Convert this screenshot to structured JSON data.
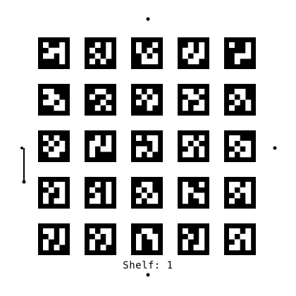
{
  "caption": "Shelf: 1",
  "colors": {
    "background": "#ffffff",
    "ink": "#000000"
  },
  "markers": {
    "rows": 5,
    "cols": 5,
    "bits": 4,
    "patterns": [
      [
        "1001",
        "0111",
        "1101",
        "0001"
      ],
      [
        "0101",
        "1001",
        "0101",
        "1010"
      ],
      [
        "1001",
        "1010",
        "0101",
        "0111"
      ],
      [
        "0101",
        "1101",
        "1011",
        "0110"
      ],
      [
        "1001",
        "0001",
        "0111",
        "0100"
      ],
      [
        "1100",
        "0110",
        "1101",
        "0011"
      ],
      [
        "0110",
        "1001",
        "0010",
        "0101"
      ],
      [
        "1010",
        "0101",
        "1011",
        "0010"
      ],
      [
        "1101",
        "0110",
        "1001",
        "1011"
      ],
      [
        "0110",
        "1010",
        "0101",
        "1001"
      ],
      [
        "1010",
        "0101",
        "1011",
        "0110"
      ],
      [
        "0101",
        "1101",
        "1011",
        "1000"
      ],
      [
        "1011",
        "0001",
        "1101",
        "1010"
      ],
      [
        "1101",
        "1010",
        "0101",
        "1101"
      ],
      [
        "1100",
        "1011",
        "0101",
        "1011"
      ],
      [
        "1011",
        "0101",
        "1001",
        "1011"
      ],
      [
        "0101",
        "1001",
        "0101",
        "1101"
      ],
      [
        "0110",
        "1010",
        "0101",
        "1011"
      ],
      [
        "1001",
        "1100",
        "1011",
        "1001"
      ],
      [
        "1101",
        "1011",
        "0101",
        "1001"
      ],
      [
        "1101",
        "0101",
        "1001",
        "1010"
      ],
      [
        "1011",
        "0101",
        "1001",
        "1010"
      ],
      [
        "0110",
        "1011",
        "1001",
        "1001"
      ],
      [
        "1001",
        "0101",
        "1001",
        "1011"
      ],
      [
        "1101",
        "1011",
        "0101",
        "1101"
      ]
    ]
  },
  "fiducials": [
    "top-dot",
    "bottom-dot",
    "right-dot",
    "left-bar"
  ]
}
